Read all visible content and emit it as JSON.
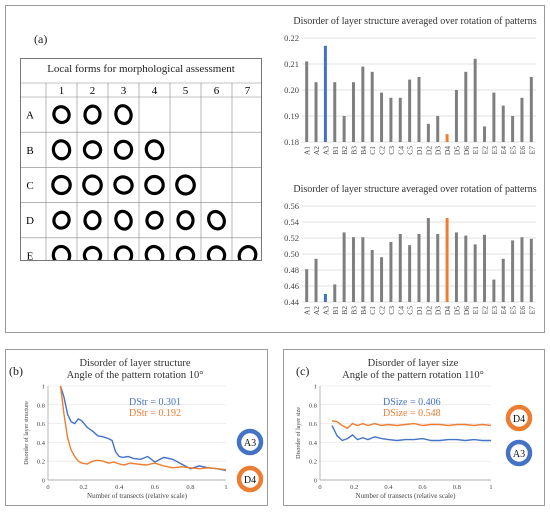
{
  "panel_a": {
    "label": "(a)",
    "forms_title": "Local forms for morphological assessment",
    "columns": [
      "1",
      "2",
      "3",
      "4",
      "5",
      "6",
      "7"
    ],
    "rows": [
      "A",
      "B",
      "C",
      "D",
      "E"
    ],
    "forms_per_row": [
      3,
      4,
      5,
      6,
      7
    ]
  },
  "panel_b": {
    "label": "(b)"
  },
  "panel_c": {
    "label": "(c)"
  },
  "chart_data": [
    {
      "type": "bar",
      "title": "Disorder of layer structure averaged over rotation of patterns",
      "categories": [
        "A1",
        "A2",
        "A3",
        "B1",
        "B2",
        "B3",
        "B4",
        "C1",
        "C2",
        "C3",
        "C4",
        "C5",
        "D1",
        "D2",
        "D3",
        "D4",
        "D5",
        "D6",
        "E1",
        "E2",
        "E3",
        "E4",
        "E5",
        "E6",
        "E7"
      ],
      "values": [
        0.211,
        0.203,
        0.217,
        0.203,
        0.19,
        0.203,
        0.209,
        0.207,
        0.199,
        0.197,
        0.197,
        0.204,
        0.205,
        0.187,
        0.19,
        0.183,
        0.2,
        0.207,
        0.212,
        0.186,
        0.199,
        0.194,
        0.19,
        0.197,
        0.205
      ],
      "highlight": {
        "A3": "#4472c4",
        "D4": "#ed7d31"
      },
      "bar_color": "#7f7f7f",
      "ylim": [
        0.18,
        0.22
      ],
      "yticks": [
        "0.18",
        "0.19",
        "0.20",
        "0.21",
        "0.22"
      ],
      "grid": true
    },
    {
      "type": "bar",
      "title": "Disorder of layer structure averaged over rotation of patterns",
      "categories": [
        "A1",
        "A2",
        "A3",
        "B1",
        "B2",
        "B3",
        "B4",
        "C1",
        "C2",
        "C3",
        "C4",
        "C5",
        "D1",
        "D2",
        "D3",
        "D4",
        "D5",
        "D6",
        "E1",
        "E2",
        "E3",
        "E4",
        "E5",
        "E6",
        "E7"
      ],
      "values": [
        0.481,
        0.494,
        0.45,
        0.462,
        0.527,
        0.521,
        0.521,
        0.505,
        0.496,
        0.515,
        0.525,
        0.511,
        0.525,
        0.545,
        0.525,
        0.545,
        0.527,
        0.523,
        0.512,
        0.524,
        0.468,
        0.494,
        0.517,
        0.521,
        0.519
      ],
      "highlight": {
        "A3": "#4472c4",
        "D4": "#ed7d31"
      },
      "bar_color": "#7f7f7f",
      "ylim": [
        0.44,
        0.56
      ],
      "yticks": [
        "0.44",
        "0.46",
        "0.48",
        "0.50",
        "0.52",
        "0.54",
        "0.56"
      ],
      "grid": true
    },
    {
      "type": "line",
      "title": "Disorder of layer structure",
      "subtitle": "Angle of the pattern rotation 10°",
      "xlabel": "Number of transects (relative scale)",
      "ylabel": "Disorder of layer structure",
      "xlim": [
        0,
        1
      ],
      "ylim": [
        0,
        1
      ],
      "xticks": [
        "0",
        "0.2",
        "0.4",
        "0.6",
        "0.8",
        "1"
      ],
      "yticks": [
        "0",
        "0.2",
        "0.4",
        "0.6",
        "0.8",
        "1"
      ],
      "annotations": [
        "DStr = 0.301",
        "DStr = 0.192"
      ],
      "series": [
        {
          "name": "A3",
          "color": "#4472c4",
          "x": [
            0.07,
            0.09,
            0.11,
            0.13,
            0.15,
            0.17,
            0.19,
            0.22,
            0.25,
            0.28,
            0.31,
            0.34,
            0.36,
            0.38,
            0.4,
            0.42,
            0.45,
            0.48,
            0.52,
            0.56,
            0.6,
            0.65,
            0.7,
            0.75,
            0.8,
            0.85,
            0.9,
            0.95,
            1.0
          ],
          "y": [
            1.0,
            0.88,
            0.7,
            0.62,
            0.6,
            0.65,
            0.63,
            0.56,
            0.52,
            0.47,
            0.46,
            0.44,
            0.42,
            0.3,
            0.25,
            0.24,
            0.25,
            0.23,
            0.22,
            0.25,
            0.19,
            0.24,
            0.22,
            0.17,
            0.12,
            0.15,
            0.13,
            0.12,
            0.1
          ]
        },
        {
          "name": "D4",
          "color": "#ed7d31",
          "x": [
            0.07,
            0.09,
            0.11,
            0.13,
            0.15,
            0.17,
            0.19,
            0.22,
            0.25,
            0.28,
            0.31,
            0.34,
            0.37,
            0.4,
            0.43,
            0.46,
            0.5,
            0.55,
            0.6,
            0.65,
            0.7,
            0.75,
            0.8,
            0.85,
            0.9,
            0.95,
            1.0
          ],
          "y": [
            1.0,
            0.7,
            0.45,
            0.32,
            0.25,
            0.2,
            0.18,
            0.17,
            0.2,
            0.21,
            0.2,
            0.18,
            0.19,
            0.17,
            0.16,
            0.18,
            0.17,
            0.16,
            0.18,
            0.15,
            0.13,
            0.14,
            0.13,
            0.12,
            0.13,
            0.12,
            0.11
          ]
        }
      ]
    },
    {
      "type": "line",
      "title": "Disorder of layer size",
      "subtitle": "Angle of the pattern rotation 110°",
      "xlabel": "Number of transects (relative scale)",
      "ylabel": "Disorder of layer size",
      "xlim": [
        0,
        1
      ],
      "ylim": [
        0,
        1
      ],
      "xticks": [
        "0",
        "0.2",
        "0.4",
        "0.6",
        "0.8",
        "1"
      ],
      "yticks": [
        "0",
        "0.2",
        "0.4",
        "0.6",
        "0.8",
        "1"
      ],
      "annotations": [
        "DSize = 0.406",
        "DSize = 0.548"
      ],
      "series": [
        {
          "name": "A3",
          "color": "#4472c4",
          "x": [
            0.07,
            0.1,
            0.13,
            0.16,
            0.19,
            0.22,
            0.25,
            0.28,
            0.32,
            0.36,
            0.4,
            0.45,
            0.5,
            0.55,
            0.6,
            0.65,
            0.7,
            0.75,
            0.8,
            0.85,
            0.9,
            0.95,
            1.0
          ],
          "y": [
            0.58,
            0.47,
            0.42,
            0.44,
            0.48,
            0.43,
            0.45,
            0.43,
            0.46,
            0.44,
            0.43,
            0.42,
            0.43,
            0.43,
            0.44,
            0.42,
            0.42,
            0.43,
            0.43,
            0.42,
            0.43,
            0.42,
            0.42
          ]
        },
        {
          "name": "D4",
          "color": "#ed7d31",
          "x": [
            0.07,
            0.1,
            0.13,
            0.16,
            0.19,
            0.22,
            0.25,
            0.28,
            0.32,
            0.36,
            0.4,
            0.45,
            0.5,
            0.55,
            0.6,
            0.65,
            0.7,
            0.75,
            0.8,
            0.85,
            0.9,
            0.95,
            1.0
          ],
          "y": [
            0.63,
            0.62,
            0.58,
            0.55,
            0.6,
            0.58,
            0.6,
            0.58,
            0.6,
            0.58,
            0.59,
            0.58,
            0.59,
            0.6,
            0.58,
            0.59,
            0.59,
            0.58,
            0.59,
            0.59,
            0.58,
            0.59,
            0.58
          ]
        }
      ]
    }
  ]
}
